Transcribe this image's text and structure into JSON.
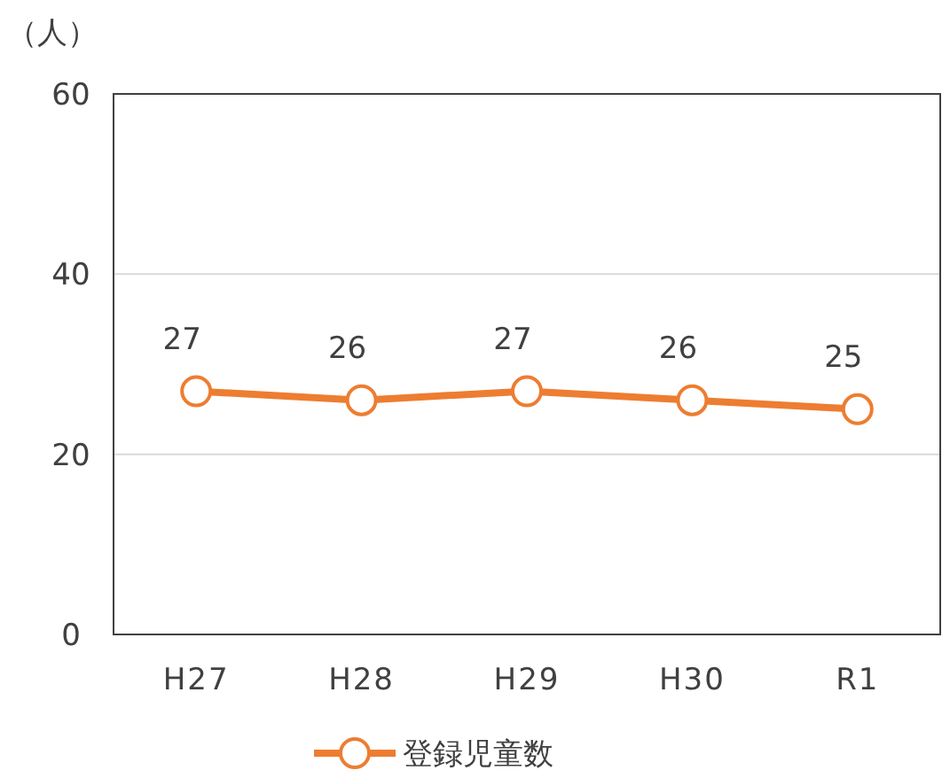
{
  "chart_data": {
    "type": "line",
    "ylabel": "（人）",
    "categories": [
      "H27",
      "H28",
      "H29",
      "H30",
      "R1"
    ],
    "series": [
      {
        "name": "登録児童数",
        "color": "#ed7d31",
        "values": [
          27,
          26,
          27,
          26,
          25
        ]
      }
    ],
    "ylim": [
      0,
      60
    ],
    "yticks": [
      0,
      20,
      40,
      60
    ],
    "grid": "y",
    "legend": "bottom",
    "marker": "circle",
    "line_style": "solid",
    "data_labels": true
  }
}
